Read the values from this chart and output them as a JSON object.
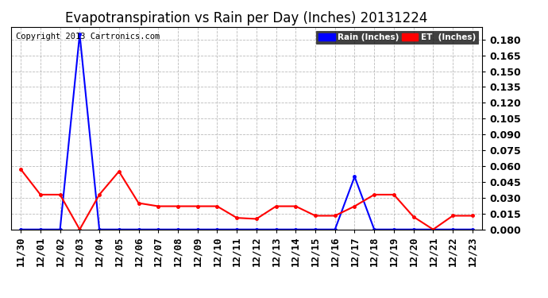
{
  "title": "Evapotranspiration vs Rain per Day (Inches) 20131224",
  "copyright": "Copyright 2013 Cartronics.com",
  "x_labels": [
    "11/30",
    "12/01",
    "12/02",
    "12/03",
    "12/04",
    "12/05",
    "12/06",
    "12/07",
    "12/08",
    "12/09",
    "12/10",
    "12/11",
    "12/12",
    "12/13",
    "12/14",
    "12/15",
    "12/16",
    "12/17",
    "12/18",
    "12/19",
    "12/20",
    "12/21",
    "12/22",
    "12/23"
  ],
  "rain_values": [
    0.0,
    0.0,
    0.0,
    0.185,
    0.0,
    0.0,
    0.0,
    0.0,
    0.0,
    0.0,
    0.0,
    0.0,
    0.0,
    0.0,
    0.0,
    0.0,
    0.0,
    0.05,
    0.0,
    0.0,
    0.0,
    0.0,
    0.0,
    0.0
  ],
  "et_values": [
    0.057,
    0.033,
    0.033,
    0.0,
    0.033,
    0.055,
    0.025,
    0.022,
    0.022,
    0.022,
    0.022,
    0.011,
    0.01,
    0.022,
    0.022,
    0.013,
    0.013,
    0.022,
    0.033,
    0.033,
    0.012,
    0.0,
    0.013,
    0.013
  ],
  "rain_color": "#0000ff",
  "et_color": "#ff0000",
  "bg_color": "#ffffff",
  "grid_color": "#aaaaaa",
  "ylim": [
    0.0,
    0.192
  ],
  "yticks": [
    0.0,
    0.015,
    0.03,
    0.045,
    0.06,
    0.075,
    0.09,
    0.105,
    0.12,
    0.135,
    0.15,
    0.165,
    0.18
  ],
  "legend_rain_label": "Rain (Inches)",
  "title_fontsize": 12,
  "tick_fontsize": 9,
  "ytick_fontsize": 9,
  "copyright_fontsize": 7.5
}
